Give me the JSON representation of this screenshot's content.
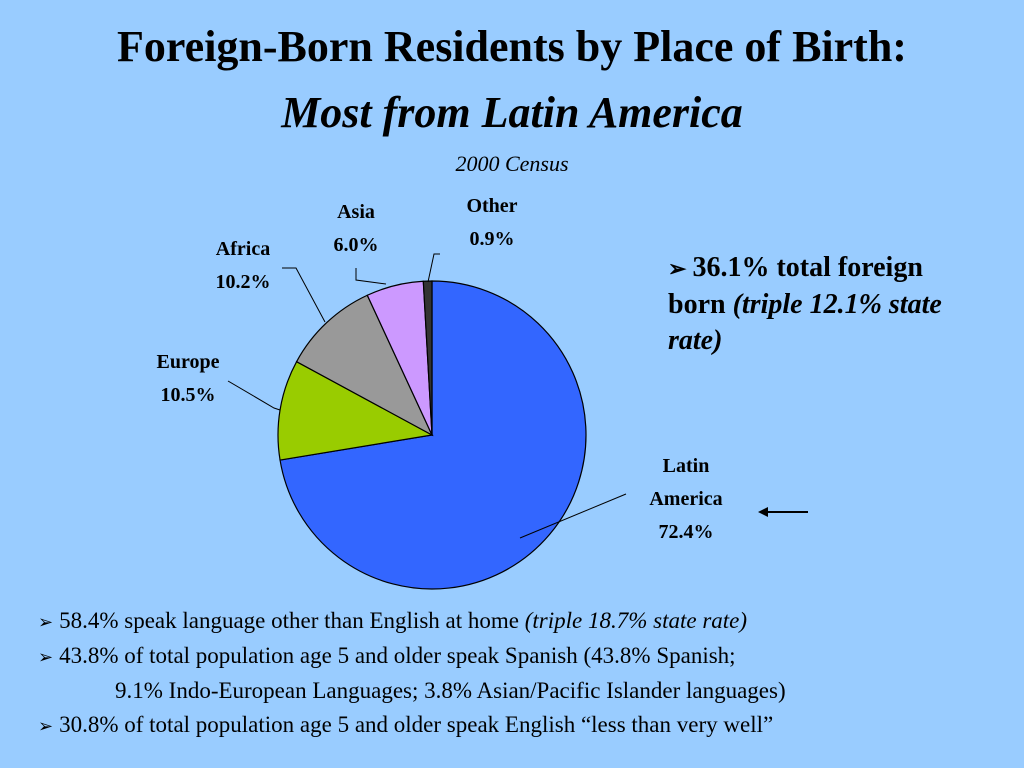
{
  "header": {
    "title": "Foreign-Born Residents by Place of Birth:",
    "subtitle": "Most from Latin America",
    "census": "2000 Census"
  },
  "chart_data": {
    "type": "pie",
    "categories": [
      "Latin America",
      "Europe",
      "Africa",
      "Asia",
      "Other"
    ],
    "values": [
      72.4,
      10.5,
      10.2,
      6.0,
      0.9
    ],
    "value_labels": [
      "72.4%",
      "10.5%",
      "10.2%",
      "6.0%",
      "0.9%"
    ],
    "colors": [
      "#3366ff",
      "#99cc00",
      "#999999",
      "#cc99ff",
      "#333333"
    ],
    "start": "12 o'clock, clockwise"
  },
  "callout": {
    "bullet": "➢",
    "lead": "36.1% total foreign born",
    "tail": "(triple 12.1% state rate)"
  },
  "bullets": [
    {
      "marker": "➢",
      "text": "58.4% speak language other than English at home ",
      "italic": "(triple 18.7% state rate)"
    },
    {
      "marker": "➢",
      "text": "43.8% of total population age 5 and older speak Spanish (43.8% Spanish;",
      "italic": ""
    },
    {
      "marker": "",
      "text": "9.1% Indo-European Languages; 3.8% Asian/Pacific Islander languages)",
      "italic": ""
    },
    {
      "marker": "➢",
      "text": "30.8% of total population age 5 and older speak English “less than very well”",
      "italic": ""
    }
  ]
}
